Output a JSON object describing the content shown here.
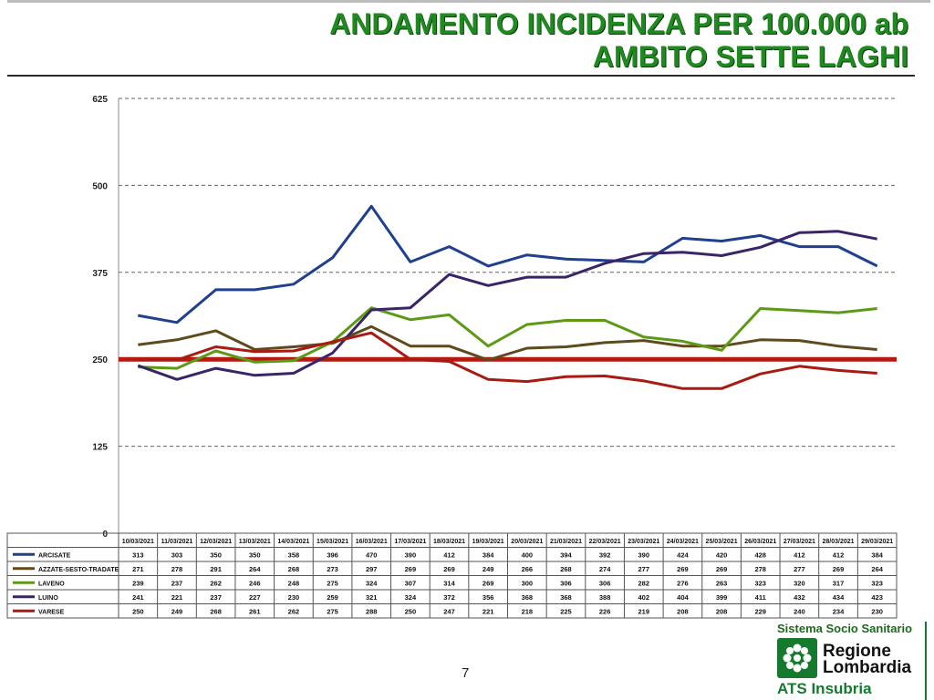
{
  "header": {
    "title_line1": "ANDAMENTO INCIDENZA PER 100.000 ab",
    "title_line2": "AMBITO SETTE LAGHI"
  },
  "page_number": "7",
  "logo": {
    "top": "Sistema Socio Sanitario",
    "region_line1": "Regione",
    "region_line2": "Lombardia",
    "ats": "ATS Insubria"
  },
  "chart_data": {
    "type": "line",
    "categories": [
      "10/03/2021",
      "11/03/2021",
      "12/03/2021",
      "13/03/2021",
      "14/03/2021",
      "15/03/2021",
      "16/03/2021",
      "17/03/2021",
      "18/03/2021",
      "19/03/2021",
      "20/03/2021",
      "21/03/2021",
      "22/03/2021",
      "23/03/2021",
      "24/03/2021",
      "25/03/2021",
      "26/03/2021",
      "27/03/2021",
      "28/03/2021",
      "29/03/2021"
    ],
    "ylim": [
      0,
      625
    ],
    "yticks": [
      "0",
      "125",
      "250",
      "375",
      "500",
      "625"
    ],
    "grid": true,
    "threshold": 250,
    "series": [
      {
        "name": "ARCISATE",
        "color": "#1f3f8f",
        "values": [
          313,
          303,
          350,
          350,
          358,
          396,
          470,
          390,
          412,
          384,
          400,
          394,
          392,
          390,
          424,
          420,
          428,
          412,
          412,
          384
        ]
      },
      {
        "name": "AZZATE-SESTO-TRADATE",
        "color": "#5e4a1c",
        "values": [
          271,
          278,
          291,
          264,
          268,
          273,
          297,
          269,
          269,
          249,
          266,
          268,
          274,
          277,
          269,
          269,
          278,
          277,
          269,
          264
        ]
      },
      {
        "name": "LAVENO",
        "color": "#5c9a16",
        "values": [
          239,
          237,
          262,
          246,
          248,
          275,
          324,
          307,
          314,
          269,
          300,
          306,
          306,
          282,
          276,
          263,
          323,
          320,
          317,
          323
        ]
      },
      {
        "name": "LUINO",
        "color": "#3a2468",
        "values": [
          241,
          221,
          237,
          227,
          230,
          259,
          321,
          324,
          372,
          356,
          368,
          368,
          388,
          402,
          404,
          399,
          411,
          432,
          434,
          423
        ]
      },
      {
        "name": "VARESE",
        "color": "#a81a12",
        "values": [
          250,
          249,
          268,
          261,
          262,
          275,
          288,
          250,
          247,
          221,
          218,
          225,
          226,
          219,
          208,
          208,
          229,
          240,
          234,
          230
        ]
      }
    ]
  }
}
